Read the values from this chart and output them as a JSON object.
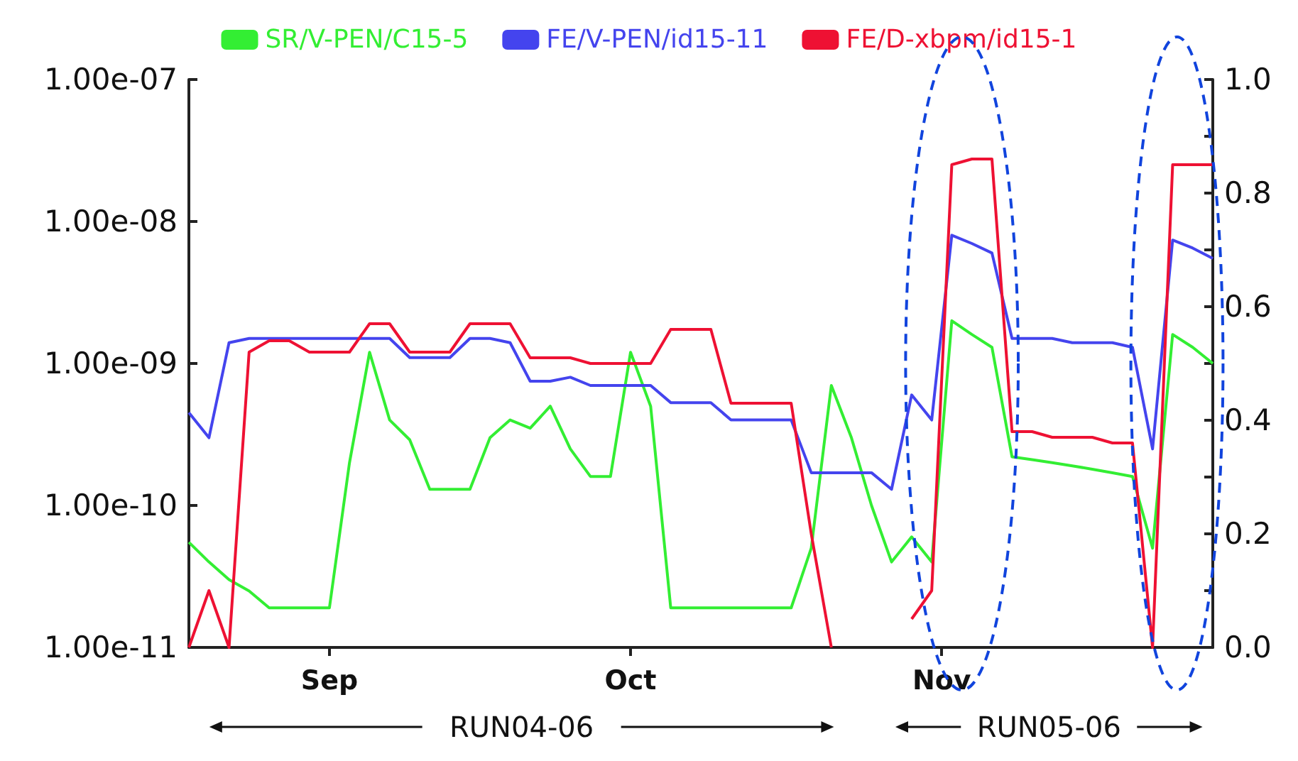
{
  "chart_data": {
    "type": "line",
    "log": "y",
    "x": [
      "--08-18",
      "--08-20",
      "--08-22",
      "--08-24",
      "--08-26",
      "--08-28",
      "--08-30",
      "--09-01",
      "--09-03",
      "--09-05",
      "--09-07",
      "--09-09",
      "--09-11",
      "--09-13",
      "--09-15",
      "--09-17",
      "--09-19",
      "--09-21",
      "--09-23",
      "--09-25",
      "--09-27",
      "--09-29",
      "--10-01",
      "--10-03",
      "--10-05",
      "--10-07",
      "--10-09",
      "--10-11",
      "--10-13",
      "--10-15",
      "--10-17",
      "--10-19",
      "--10-21",
      "--10-23",
      "--10-25",
      "--10-27",
      "--10-29",
      "--10-31",
      "--11-02",
      "--11-04",
      "--11-06",
      "--11-08",
      "--11-10",
      "--11-12",
      "--11-14",
      "--11-16",
      "--11-18",
      "--11-20",
      "--11-22",
      "--11-24",
      "--11-26",
      "--11-28"
    ],
    "xlim": [
      "--08-18",
      "--11-28"
    ],
    "xticks": [
      {
        "value": "--09-01",
        "label": "Sep"
      },
      {
        "value": "--10-01",
        "label": "Oct"
      },
      {
        "value": "--11-01",
        "label": "Nov"
      }
    ],
    "ylim": [
      1e-11,
      1e-07
    ],
    "yticks": [
      {
        "value": 1e-11,
        "label": "1.00e-11"
      },
      {
        "value": 1e-10,
        "label": "1.00e-10"
      },
      {
        "value": 1e-09,
        "label": "1.00e-09"
      },
      {
        "value": 1e-08,
        "label": "1.00e-08"
      },
      {
        "value": 1e-07,
        "label": "1.00e-07"
      }
    ],
    "y2lim": [
      0,
      1
    ],
    "y2ticks": [
      {
        "value": 0,
        "label": "0.0"
      },
      {
        "value": 0.1,
        "label": null
      },
      0.2,
      {
        "value": 0.3,
        "label": null
      },
      0.4,
      {
        "value": 0.5,
        "label": null
      },
      0.6,
      {
        "value": 0.7,
        "label": null
      },
      0.8,
      {
        "value": 0.9,
        "label": null
      },
      {
        "value": 1,
        "label": "1.0"
      }
    ],
    "grid": false,
    "marker": "none",
    "line_style": "solid",
    "legend": "top",
    "series": [
      {
        "name": "SR/V-PEN/C15-5",
        "color": "#33ee33",
        "values": [
          5.5e-11,
          4e-11,
          3e-11,
          2.5e-11,
          1.9e-11,
          1.9e-11,
          1.9e-11,
          1.9e-11,
          2e-10,
          1.2e-09,
          4e-10,
          2.9e-10,
          1.3e-10,
          1.3e-10,
          1.3e-10,
          3e-10,
          4e-10,
          3.5e-10,
          5e-10,
          2.5e-10,
          1.6e-10,
          1.6e-10,
          1.2e-09,
          5e-10,
          1.9e-11,
          1.9e-11,
          1.9e-11,
          1.9e-11,
          1.9e-11,
          1.9e-11,
          1.9e-11,
          5e-11,
          7e-10,
          3e-10,
          1e-10,
          4e-11,
          6e-11,
          4e-11,
          2e-09,
          1.6e-09,
          1.3e-09,
          2.2e-10,
          2.1e-10,
          2e-10,
          1.9e-10,
          1.8e-10,
          1.7e-10,
          1.6e-10,
          5e-11,
          1.6e-09,
          1.3e-09,
          1e-09
        ]
      },
      {
        "name": "FE/V-PEN/id15-11",
        "color": "#4444ee",
        "values": [
          4.5e-10,
          3e-10,
          1.4e-09,
          1.5e-09,
          1.5e-09,
          1.5e-09,
          1.5e-09,
          1.5e-09,
          1.5e-09,
          1.5e-09,
          1.5e-09,
          1.1e-09,
          1.1e-09,
          1.1e-09,
          1.5e-09,
          1.5e-09,
          1.4e-09,
          7.5e-10,
          7.5e-10,
          8e-10,
          7e-10,
          7e-10,
          7e-10,
          7e-10,
          5.3e-10,
          5.3e-10,
          5.3e-10,
          4e-10,
          4e-10,
          4e-10,
          4e-10,
          1.7e-10,
          1.7e-10,
          1.7e-10,
          1.7e-10,
          1.3e-10,
          6e-10,
          4e-10,
          8e-09,
          7e-09,
          6e-09,
          1.5e-09,
          1.5e-09,
          1.5e-09,
          1.4e-09,
          1.4e-09,
          1.4e-09,
          1.3e-09,
          2.5e-10,
          7.4e-09,
          6.5e-09,
          5.5e-09
        ]
      },
      {
        "name": "FE/D-xbpm/id15-1",
        "color": "#ee1133",
        "axis": "y2",
        "values": [
          0,
          0.1,
          0,
          0.52,
          0.54,
          0.54,
          0.52,
          0.52,
          0.52,
          0.57,
          0.57,
          0.52,
          0.52,
          0.52,
          0.57,
          0.57,
          0.57,
          0.51,
          0.51,
          0.51,
          0.5,
          0.5,
          0.5,
          0.5,
          0.56,
          0.56,
          0.56,
          0.43,
          0.43,
          0.43,
          0.43,
          0.2,
          0,
          null,
          null,
          null,
          0.05,
          0.1,
          0.85,
          0.86,
          0.86,
          0.38,
          0.38,
          0.37,
          0.37,
          0.37,
          0.36,
          0.36,
          0,
          0.85,
          0.85,
          0.85
        ]
      }
    ],
    "annotations": [
      "RUN04-06",
      "RUN05-06"
    ]
  }
}
